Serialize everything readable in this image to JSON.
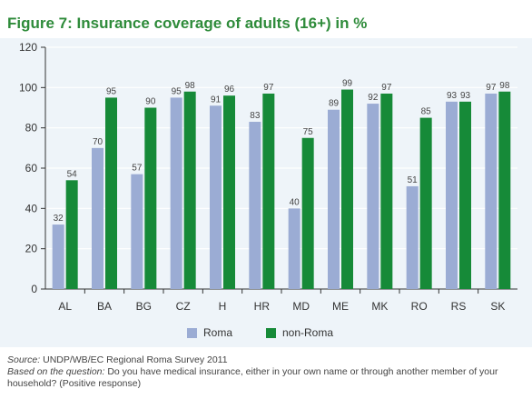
{
  "title": {
    "figure_label": "Figure 7:",
    "text": "Insurance coverage of adults (16+) in %"
  },
  "colors": {
    "roma": "#9bacd4",
    "non_roma": "#168a38",
    "background": "#eef4f9",
    "gridline": "#ffffff"
  },
  "chart_data": {
    "type": "bar",
    "categories": [
      "AL",
      "BA",
      "BG",
      "CZ",
      "H",
      "HR",
      "MD",
      "ME",
      "MK",
      "RO",
      "RS",
      "SK"
    ],
    "series": [
      {
        "name": "Roma",
        "values": [
          32,
          70,
          57,
          95,
          91,
          83,
          40,
          89,
          92,
          51,
          93,
          97
        ]
      },
      {
        "name": "non-Roma",
        "values": [
          54,
          95,
          90,
          98,
          96,
          97,
          75,
          99,
          97,
          85,
          93,
          98
        ]
      }
    ],
    "yticks": [
      "0",
      "20",
      "40",
      "60",
      "80",
      "100",
      "120"
    ],
    "ylim": [
      0,
      120
    ],
    "grid": true,
    "legend_position": "bottom"
  },
  "notes": {
    "source_label": "Source:",
    "source_text": " UNDP/WB/EC Regional Roma Survey 2011",
    "question_label": "Based on the question:",
    "question_text": " Do you have medical insurance, either in your own name or through another member of your household? (Positive response)"
  }
}
